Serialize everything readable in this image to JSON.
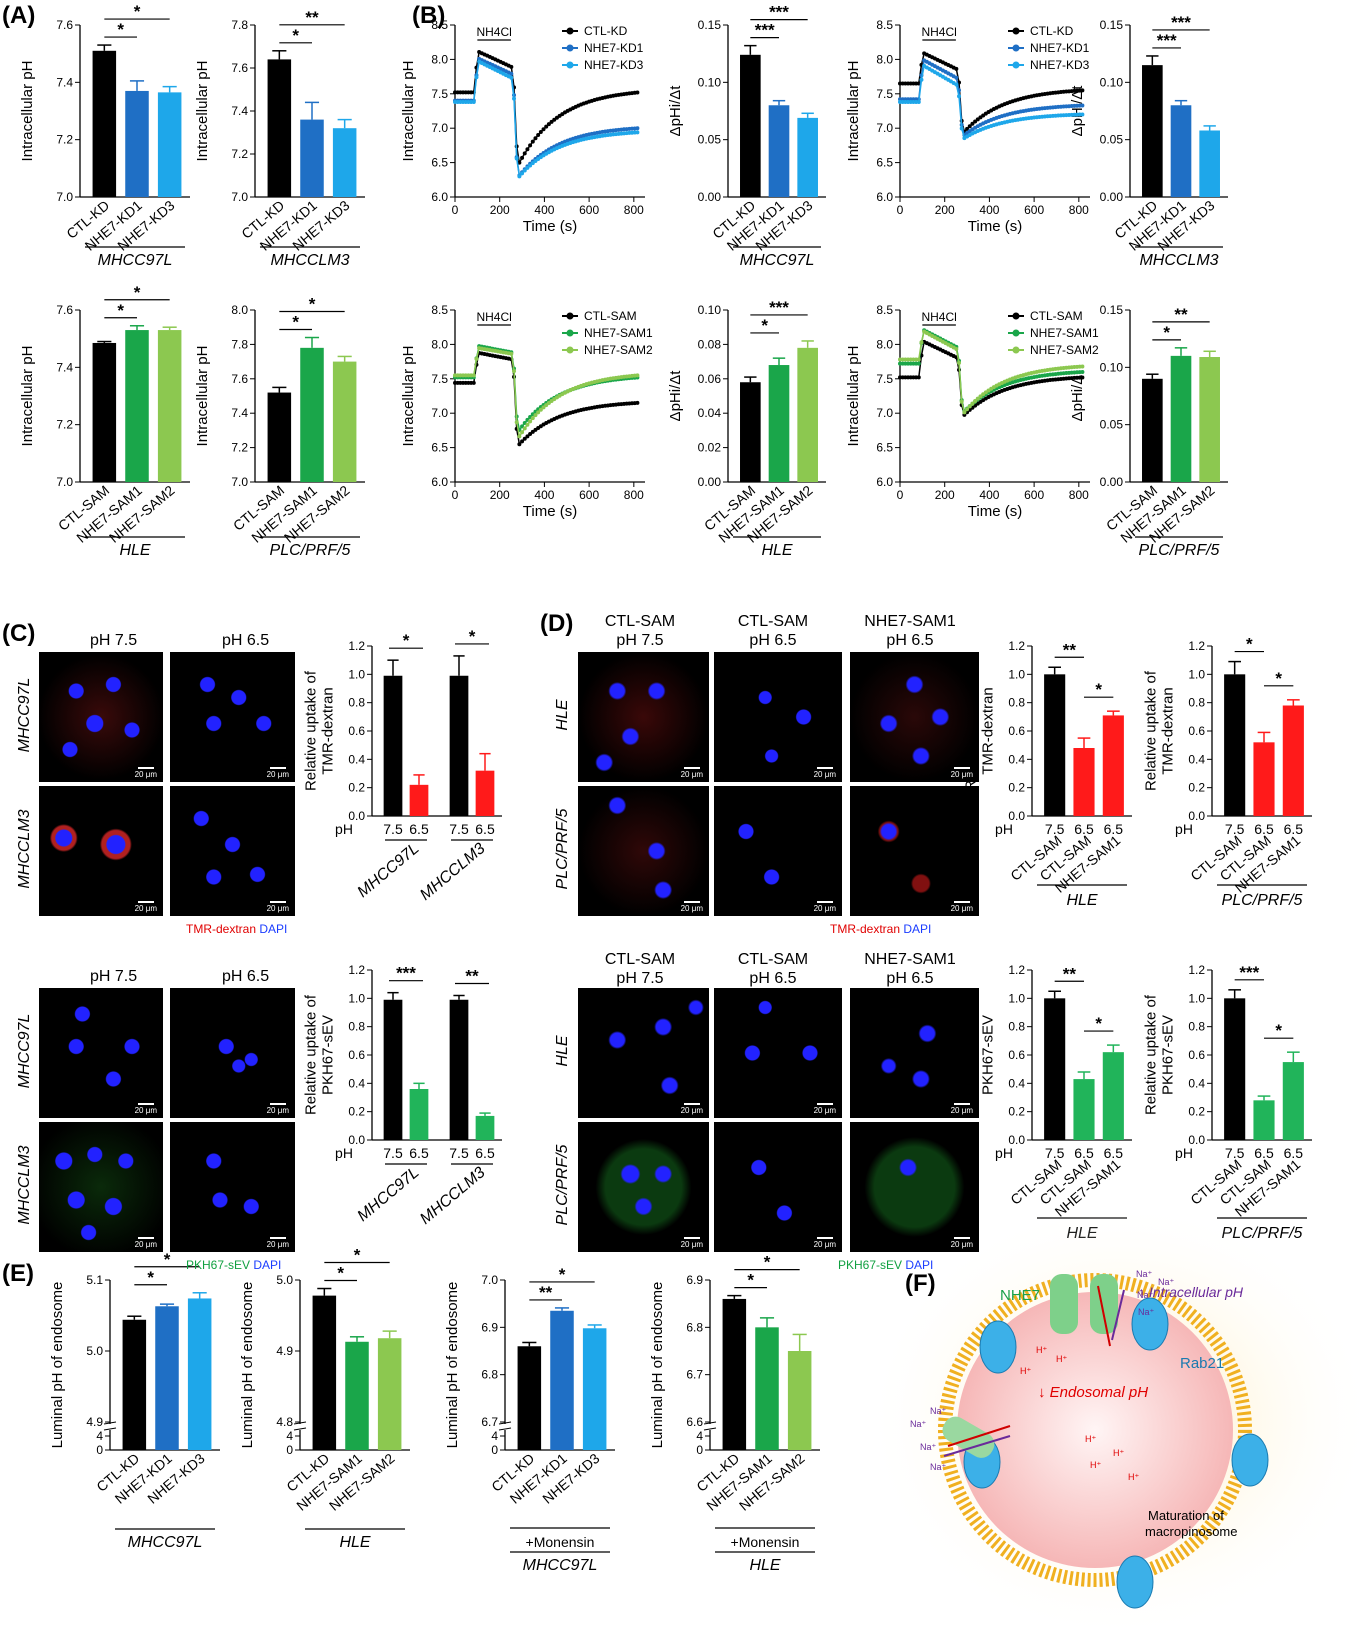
{
  "panels": {
    "A": "(A)",
    "B": "(B)",
    "C": "(C)",
    "D": "(D)",
    "E": "(E)",
    "F": "(F)"
  },
  "labels": {
    "intracellular_ph": "Intracellular pH",
    "dphi": "ΔpHi/Δt",
    "time": "Time (s)",
    "nh4cl": "NH4Cl",
    "rel_tmr": [
      "Relative uptake of",
      "TMR-dextran"
    ],
    "rel_pkh": [
      "Relative uptake of",
      "PKH67-sEV"
    ],
    "luminal": "Luminal pH of endosome",
    "ph": "pH",
    "ph75": "pH 7.5",
    "ph65": "pH 6.5",
    "tmr": "TMR-dextran",
    "pkh": "PKH67-sEV",
    "dapi": "DAPI",
    "scale": "20 μm",
    "monensin": "+Monensin",
    "ctl_sam_75": [
      "CTL-SAM",
      "pH 7.5"
    ],
    "ctl_sam_65": [
      "CTL-SAM",
      "pH 6.5"
    ],
    "nhe_sam1_65": [
      "NHE7-SAM1",
      "pH 6.5"
    ]
  },
  "groups": {
    "mhcc97l": "MHCC97L",
    "mhcclm3": "MHCCLM3",
    "hle": "HLE",
    "plc": "PLC/PRF/5"
  },
  "colors": {
    "black": "#000000",
    "dblue": "#1f6fc5",
    "lblue": "#1ea7ea",
    "dgreen": "#1aa64a",
    "lgreen": "#8cc850",
    "red": "#ff1a1a",
    "green": "#21b45a"
  },
  "chart_data": [
    {
      "id": "A1",
      "type": "bar",
      "categories": [
        "CTL-KD",
        "NHE7-KD1",
        "NHE7-KD3"
      ],
      "values": [
        7.51,
        7.37,
        7.365
      ],
      "errors": [
        0.02,
        0.035,
        0.02
      ],
      "ylim": [
        7.0,
        7.6
      ],
      "yticks": [
        7.0,
        7.2,
        7.4,
        7.6
      ],
      "ylabel": "Intracellular pH",
      "group": "MHCC97L",
      "sig": [
        "*",
        "*"
      ]
    },
    {
      "id": "A2",
      "type": "bar",
      "categories": [
        "CTL-KD",
        "NHE7-KD1",
        "NHE7-KD3"
      ],
      "values": [
        7.64,
        7.36,
        7.32
      ],
      "errors": [
        0.04,
        0.08,
        0.04
      ],
      "ylim": [
        7.0,
        7.8
      ],
      "yticks": [
        7.0,
        7.2,
        7.4,
        7.6,
        7.8
      ],
      "ylabel": "Intracellular pH",
      "group": "MHCCLM3",
      "sig": [
        "*",
        "**"
      ]
    },
    {
      "id": "A3",
      "type": "bar",
      "categories": [
        "CTL-SAM",
        "NHE7-SAM1",
        "NHE7-SAM2"
      ],
      "values": [
        7.485,
        7.53,
        7.53
      ],
      "errors": [
        0.005,
        0.015,
        0.01
      ],
      "ylim": [
        7.0,
        7.6
      ],
      "yticks": [
        7.0,
        7.2,
        7.4,
        7.6
      ],
      "ylabel": "Intracellular pH",
      "group": "HLE",
      "sig": [
        "*",
        "*"
      ]
    },
    {
      "id": "A4",
      "type": "bar",
      "categories": [
        "CTL-SAM",
        "NHE7-SAM1",
        "NHE7-SAM2"
      ],
      "values": [
        7.52,
        7.78,
        7.7
      ],
      "errors": [
        0.03,
        0.06,
        0.03
      ],
      "ylim": [
        7.0,
        8.0
      ],
      "yticks": [
        7.0,
        7.2,
        7.4,
        7.6,
        7.8,
        8.0
      ],
      "ylabel": "Intracellular pH",
      "group": "PLC/PRF/5",
      "sig": [
        "*",
        "*"
      ]
    },
    {
      "id": "B1",
      "type": "line",
      "series": [
        {
          "name": "CTL-KD",
          "baseline": 7.52,
          "peak": 8.12,
          "pre": 7.88,
          "trough": 6.45,
          "end": 7.52
        },
        {
          "name": "NHE7-KD1",
          "baseline": 7.4,
          "peak": 8.02,
          "pre": 7.78,
          "trough": 6.28,
          "end": 7.0
        },
        {
          "name": "NHE7-KD3",
          "baseline": 7.38,
          "peak": 7.98,
          "pre": 7.72,
          "trough": 6.27,
          "end": 6.94
        }
      ],
      "xlim": [
        0,
        850
      ],
      "xticks": [
        0,
        200,
        400,
        600,
        800
      ],
      "ylim": [
        6.0,
        8.5
      ],
      "yticks": [
        6.0,
        6.5,
        7.0,
        7.5,
        8.0,
        8.5
      ]
    },
    {
      "id": "B2",
      "type": "bar",
      "categories": [
        "CTL-KD",
        "NHE7-KD1",
        "NHE7-KD3"
      ],
      "values": [
        0.124,
        0.08,
        0.069
      ],
      "errors": [
        0.008,
        0.004,
        0.004
      ],
      "ylim": [
        0,
        0.15
      ],
      "yticks": [
        0.0,
        0.05,
        0.1,
        0.15
      ],
      "ylabel": "ΔpHi/Δt",
      "group": "MHCC97L",
      "sig": [
        "***",
        "***"
      ]
    },
    {
      "id": "B3",
      "type": "line",
      "series": [
        {
          "name": "CTL-KD",
          "baseline": 7.65,
          "peak": 8.1,
          "pre": 7.85,
          "trough": 6.92,
          "end": 7.55
        },
        {
          "name": "NHE7-KD1",
          "baseline": 7.42,
          "peak": 8.0,
          "pre": 7.72,
          "trough": 6.88,
          "end": 7.33
        },
        {
          "name": "NHE7-KD3",
          "baseline": 7.38,
          "peak": 7.92,
          "pre": 7.62,
          "trough": 6.84,
          "end": 7.2
        }
      ],
      "xlim": [
        0,
        850
      ],
      "xticks": [
        0,
        200,
        400,
        600,
        800
      ],
      "ylim": [
        6.0,
        8.5
      ],
      "yticks": [
        6.0,
        6.5,
        7.0,
        7.5,
        8.0,
        8.5
      ]
    },
    {
      "id": "B4",
      "type": "bar",
      "categories": [
        "CTL-KD",
        "NHE7-KD1",
        "NHE7-KD3"
      ],
      "values": [
        0.115,
        0.08,
        0.058
      ],
      "errors": [
        0.008,
        0.004,
        0.004
      ],
      "ylim": [
        0,
        0.15
      ],
      "yticks": [
        0.0,
        0.05,
        0.1,
        0.15
      ],
      "ylabel": "ΔpHi/Δt",
      "group": "MHCCLM3",
      "sig": [
        "***",
        "***"
      ]
    },
    {
      "id": "B5",
      "type": "line",
      "series": [
        {
          "name": "CTL-SAM",
          "baseline": 7.44,
          "peak": 7.88,
          "pre": 7.78,
          "trough": 6.52,
          "end": 7.15
        },
        {
          "name": "NHE7-SAM1",
          "baseline": 7.52,
          "peak": 7.98,
          "pre": 7.88,
          "trough": 6.72,
          "end": 7.52
        },
        {
          "name": "NHE7-SAM2",
          "baseline": 7.55,
          "peak": 7.95,
          "pre": 7.86,
          "trough": 6.62,
          "end": 7.55
        }
      ],
      "xlim": [
        0,
        850
      ],
      "xticks": [
        0,
        200,
        400,
        600,
        800
      ],
      "ylim": [
        6.0,
        8.5
      ],
      "yticks": [
        6.0,
        6.5,
        7.0,
        7.5,
        8.0,
        8.5
      ]
    },
    {
      "id": "B6",
      "type": "bar",
      "categories": [
        "CTL-SAM",
        "NHE7-SAM1",
        "NHE7-SAM2"
      ],
      "values": [
        0.058,
        0.068,
        0.078
      ],
      "errors": [
        0.003,
        0.004,
        0.004
      ],
      "ylim": [
        0,
        0.1
      ],
      "yticks": [
        0.0,
        0.02,
        0.04,
        0.06,
        0.08,
        0.1
      ],
      "ylabel": "ΔpHi/Δt",
      "group": "HLE",
      "sig": [
        "*",
        "***"
      ]
    },
    {
      "id": "B7",
      "type": "line",
      "series": [
        {
          "name": "CTL-SAM",
          "baseline": 7.52,
          "peak": 8.05,
          "pre": 7.8,
          "trough": 6.95,
          "end": 7.52
        },
        {
          "name": "NHE7-SAM1",
          "baseline": 7.72,
          "peak": 8.22,
          "pre": 7.95,
          "trough": 7.0,
          "end": 7.6
        },
        {
          "name": "NHE7-SAM2",
          "baseline": 7.78,
          "peak": 8.2,
          "pre": 7.92,
          "trough": 6.98,
          "end": 7.68
        }
      ],
      "xlim": [
        0,
        850
      ],
      "xticks": [
        0,
        200,
        400,
        600,
        800
      ],
      "ylim": [
        6.0,
        8.5
      ],
      "yticks": [
        6.0,
        6.5,
        7.0,
        7.5,
        8.0,
        8.5
      ]
    },
    {
      "id": "B8",
      "type": "bar",
      "categories": [
        "CTL-SAM",
        "NHE7-SAM1",
        "NHE7-SAM2"
      ],
      "values": [
        0.09,
        0.11,
        0.109
      ],
      "errors": [
        0.004,
        0.007,
        0.005
      ],
      "ylim": [
        0,
        0.15
      ],
      "yticks": [
        0.0,
        0.05,
        0.1,
        0.15
      ],
      "ylabel": "ΔpHi/Δt",
      "group": "PLC/PRF/5",
      "sig": [
        "*",
        "**"
      ]
    },
    {
      "id": "C1",
      "type": "bar",
      "categories": [
        "7.5",
        "6.5",
        "7.5",
        "6.5"
      ],
      "values": [
        0.99,
        0.22,
        0.99,
        0.32
      ],
      "errors": [
        0.11,
        0.07,
        0.14,
        0.12
      ],
      "ylim": [
        0,
        1.2
      ],
      "yticks": [
        0.0,
        0.2,
        0.4,
        0.6,
        0.8,
        1.0,
        1.2
      ],
      "sig": [
        "*",
        "*"
      ]
    },
    {
      "id": "C2",
      "type": "bar",
      "categories": [
        "7.5",
        "6.5",
        "7.5",
        "6.5"
      ],
      "values": [
        0.99,
        0.36,
        0.99,
        0.17
      ],
      "errors": [
        0.05,
        0.04,
        0.03,
        0.02
      ],
      "ylim": [
        0,
        1.2
      ],
      "yticks": [
        0.0,
        0.2,
        0.4,
        0.6,
        0.8,
        1.0,
        1.2
      ],
      "sig": [
        "***",
        "**"
      ]
    },
    {
      "id": "D1",
      "type": "bar",
      "categories": [
        "7.5",
        "6.5",
        "6.5"
      ],
      "names": [
        "CTL-SAM",
        "CTL-SAM",
        "NHE7-SAM1"
      ],
      "values": [
        1.0,
        0.48,
        0.71
      ],
      "errors": [
        0.05,
        0.07,
        0.03
      ],
      "ylim": [
        0,
        1.2
      ],
      "yticks": [
        0.0,
        0.2,
        0.4,
        0.6,
        0.8,
        1.0,
        1.2
      ],
      "group": "HLE",
      "sig": [
        "**",
        "*"
      ]
    },
    {
      "id": "D2",
      "type": "bar",
      "categories": [
        "7.5",
        "6.5",
        "6.5"
      ],
      "names": [
        "CTL-SAM",
        "CTL-SAM",
        "NHE7-SAM1"
      ],
      "values": [
        1.0,
        0.52,
        0.78
      ],
      "errors": [
        0.09,
        0.07,
        0.04
      ],
      "ylim": [
        0,
        1.2
      ],
      "yticks": [
        0.0,
        0.2,
        0.4,
        0.6,
        0.8,
        1.0,
        1.2
      ],
      "group": "PLC/PRF/5",
      "sig": [
        "*",
        "*"
      ]
    },
    {
      "id": "D3",
      "type": "bar",
      "categories": [
        "7.5",
        "6.5",
        "6.5"
      ],
      "names": [
        "CTL-SAM",
        "CTL-SAM",
        "NHE7-SAM1"
      ],
      "values": [
        1.0,
        0.43,
        0.62
      ],
      "errors": [
        0.05,
        0.05,
        0.05
      ],
      "ylim": [
        0,
        1.2
      ],
      "yticks": [
        0.0,
        0.2,
        0.4,
        0.6,
        0.8,
        1.0,
        1.2
      ],
      "group": "HLE",
      "sig": [
        "**",
        "*"
      ]
    },
    {
      "id": "D4",
      "type": "bar",
      "categories": [
        "7.5",
        "6.5",
        "6.5"
      ],
      "names": [
        "CTL-SAM",
        "CTL-SAM",
        "NHE7-SAM1"
      ],
      "values": [
        1.0,
        0.28,
        0.55
      ],
      "errors": [
        0.06,
        0.03,
        0.07
      ],
      "ylim": [
        0,
        1.2
      ],
      "yticks": [
        0.0,
        0.2,
        0.4,
        0.6,
        0.8,
        1.0,
        1.2
      ],
      "group": "PLC/PRF/5",
      "sig": [
        "***",
        "*"
      ]
    },
    {
      "id": "E1",
      "type": "bar",
      "categories": [
        "CTL-KD",
        "NHE7-KD1",
        "NHE7-KD3"
      ],
      "values": [
        5.044,
        5.063,
        5.074
      ],
      "errors": [
        0.005,
        0.003,
        0.008
      ],
      "ylim": [
        4.9,
        5.1
      ],
      "yticks": [
        4.9,
        5.0,
        5.1
      ],
      "extra_tick": 4,
      "ylabel": "Luminal pH of endosome",
      "group": "MHCC97L",
      "sig": [
        "*",
        "*"
      ]
    },
    {
      "id": "E2",
      "type": "bar",
      "categories": [
        "CTL-KD",
        "NHE7-SAM1",
        "NHE7-SAM2"
      ],
      "values": [
        4.978,
        4.913,
        4.918
      ],
      "errors": [
        0.01,
        0.007,
        0.01
      ],
      "ylim": [
        4.8,
        5.0
      ],
      "yticks": [
        4.8,
        4.9,
        5.0
      ],
      "extra_tick": 4,
      "ylabel": "Luminal pH of endosome",
      "group": "HLE",
      "sig": [
        "*",
        "*"
      ]
    },
    {
      "id": "E3",
      "type": "bar",
      "categories": [
        "CTL-KD",
        "NHE7-KD1",
        "NHE7-KD3"
      ],
      "values": [
        6.86,
        6.935,
        6.898
      ],
      "errors": [
        0.008,
        0.006,
        0.007
      ],
      "ylim": [
        6.7,
        7.0
      ],
      "yticks": [
        6.7,
        6.8,
        6.9,
        7.0
      ],
      "extra_tick": 4,
      "ylabel": "Luminal pH of endosome",
      "group": "MHCC97L",
      "sub": "+Monensin",
      "sig": [
        "**",
        "*"
      ]
    },
    {
      "id": "E4",
      "type": "bar",
      "categories": [
        "CTL-KD",
        "NHE7-SAM1",
        "NHE7-SAM2"
      ],
      "values": [
        6.86,
        6.8,
        6.75
      ],
      "errors": [
        0.007,
        0.02,
        0.035
      ],
      "ylim": [
        6.6,
        6.9
      ],
      "yticks": [
        6.6,
        6.7,
        6.8,
        6.9
      ],
      "extra_tick": 4,
      "ylabel": "Luminal pH of endosome",
      "group": "HLE",
      "sub": "+Monensin",
      "sig": [
        "*",
        "*"
      ]
    }
  ],
  "diagram": {
    "nhe7": "NHE7",
    "rab21": "Rab21",
    "intra": "↑ Intracellular pH",
    "endo": "↓ Endosomal pH",
    "mat": [
      "Maturation of",
      "macropinosome"
    ],
    "na": "Na⁺",
    "h": "H⁺"
  }
}
